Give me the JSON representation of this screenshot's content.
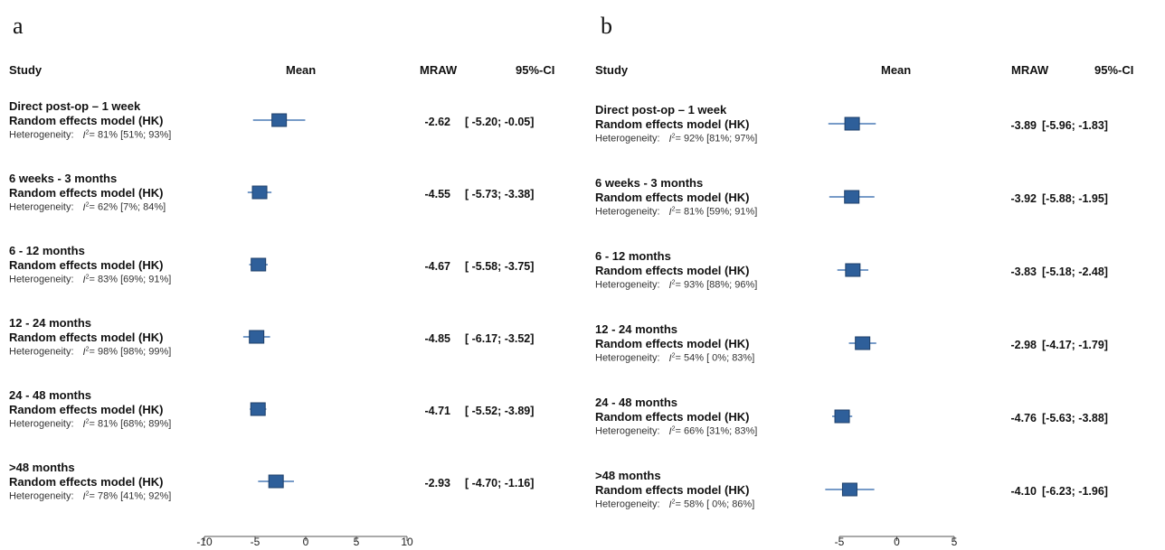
{
  "chart_data": [
    {
      "type": "forest",
      "panel": "a",
      "headers": {
        "study": "Study",
        "mean": "Mean",
        "mraw": "MRAW",
        "ci": "95%-CI"
      },
      "model_label": "Random effects model (HK)",
      "het_prefix": "Heterogeneity:",
      "xlim": [
        -10,
        10
      ],
      "xticks": [
        "-10",
        "-5",
        "0",
        "5",
        "10"
      ],
      "groups": [
        {
          "title": "Direct post-op – 1 week",
          "mraw": -2.62,
          "mraw_text": "-2.62",
          "lower": -5.2,
          "upper": -0.05,
          "ci_text": "[ -5.20; -0.05]",
          "het_text": "= 81% [51%; 93%]"
        },
        {
          "title": "6 weeks - 3 months",
          "mraw": -4.55,
          "mraw_text": "-4.55",
          "lower": -5.73,
          "upper": -3.38,
          "ci_text": "[ -5.73; -3.38]",
          "het_text": "= 62% [7%; 84%]"
        },
        {
          "title": "6 - 12 months",
          "mraw": -4.67,
          "mraw_text": "-4.67",
          "lower": -5.58,
          "upper": -3.75,
          "ci_text": "[ -5.58; -3.75]",
          "het_text": "= 83% [69%; 91%]"
        },
        {
          "title": "12 - 24 months",
          "mraw": -4.85,
          "mraw_text": "-4.85",
          "lower": -6.17,
          "upper": -3.52,
          "ci_text": "[ -6.17; -3.52]",
          "het_text": "= 98% [98%; 99%]"
        },
        {
          "title": "24 - 48 months",
          "mraw": -4.71,
          "mraw_text": "-4.71",
          "lower": -5.52,
          "upper": -3.89,
          "ci_text": "[ -5.52; -3.89]",
          "het_text": "= 81% [68%; 89%]"
        },
        {
          "title": ">48 months",
          "mraw": -2.93,
          "mraw_text": "-2.93",
          "lower": -4.7,
          "upper": -1.16,
          "ci_text": "[ -4.70; -1.16]",
          "het_text": "= 78% [41%; 92%]"
        }
      ]
    },
    {
      "type": "forest",
      "panel": "b",
      "headers": {
        "study": "Study",
        "mean": "Mean",
        "mraw": "MRAW",
        "ci": "95%-CI"
      },
      "model_label": "Random effects model (HK)",
      "het_prefix": "Heterogeneity:",
      "xlim": [
        -5,
        5
      ],
      "xticks": [
        "-5",
        "0",
        "5"
      ],
      "groups": [
        {
          "title": "Direct post-op – 1 week",
          "mraw": -3.89,
          "mraw_text": "-3.89",
          "lower": -5.96,
          "upper": -1.83,
          "ci_text": "[-5.96; -1.83]",
          "het_text": "= 92% [81%; 97%]"
        },
        {
          "title": "6 weeks - 3 months",
          "mraw": -3.92,
          "mraw_text": "-3.92",
          "lower": -5.88,
          "upper": -1.95,
          "ci_text": "[-5.88; -1.95]",
          "het_text": "= 81% [59%; 91%]"
        },
        {
          "title": "6 - 12 months",
          "mraw": -3.83,
          "mraw_text": "-3.83",
          "lower": -5.18,
          "upper": -2.48,
          "ci_text": "[-5.18; -2.48]",
          "het_text": "= 93% [88%; 96%]"
        },
        {
          "title": "12 - 24 months",
          "mraw": -2.98,
          "mraw_text": "-2.98",
          "lower": -4.17,
          "upper": -1.79,
          "ci_text": "[-4.17; -1.79]",
          "het_text": "= 54% [ 0%; 83%]"
        },
        {
          "title": "24 - 48 months",
          "mraw": -4.76,
          "mraw_text": "-4.76",
          "lower": -5.63,
          "upper": -3.88,
          "ci_text": "[-5.63; -3.88]",
          "het_text": "= 66% [31%; 83%]"
        },
        {
          "title": ">48 months",
          "mraw": -4.1,
          "mraw_text": "-4.10",
          "lower": -6.23,
          "upper": -1.96,
          "ci_text": "[-6.23; -1.96]",
          "het_text": "= 58% [ 0%; 86%]"
        }
      ]
    }
  ],
  "colors": {
    "marker": "#2e5f9a",
    "marker_edge": "#1d3f6a",
    "ci_line": "#4a7ab5",
    "axis": "#555555"
  }
}
